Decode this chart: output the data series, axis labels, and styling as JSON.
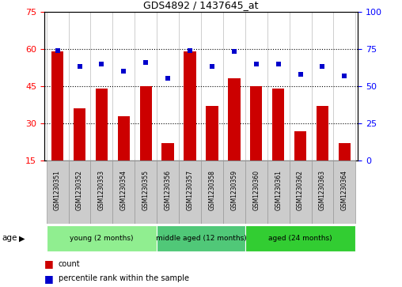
{
  "title": "GDS4892 / 1437645_at",
  "samples": [
    "GSM1230351",
    "GSM1230352",
    "GSM1230353",
    "GSM1230354",
    "GSM1230355",
    "GSM1230356",
    "GSM1230357",
    "GSM1230358",
    "GSM1230359",
    "GSM1230360",
    "GSM1230361",
    "GSM1230362",
    "GSM1230363",
    "GSM1230364"
  ],
  "bar_values": [
    59,
    36,
    44,
    33,
    45,
    22,
    59,
    37,
    48,
    45,
    44,
    27,
    37,
    22
  ],
  "percentile_values": [
    74,
    63,
    65,
    60,
    66,
    55,
    74,
    63,
    73,
    65,
    65,
    58,
    63,
    57
  ],
  "bar_color": "#CC0000",
  "percentile_color": "#0000CC",
  "ylim_left": [
    15,
    75
  ],
  "ylim_right": [
    0,
    100
  ],
  "yticks_left": [
    15,
    30,
    45,
    60,
    75
  ],
  "yticks_right": [
    0,
    25,
    50,
    75,
    100
  ],
  "groups": [
    {
      "label": "young (2 months)",
      "start": 0,
      "end": 5,
      "color": "#90EE90"
    },
    {
      "label": "middle aged (12 months)",
      "start": 5,
      "end": 9,
      "color": "#50C878"
    },
    {
      "label": "aged (24 months)",
      "start": 9,
      "end": 14,
      "color": "#32CD32"
    }
  ],
  "age_label": "age",
  "legend_bar_label": "count",
  "legend_dot_label": "percentile rank within the sample",
  "tick_label_color": "#C8C8C8",
  "border_color": "#888888"
}
